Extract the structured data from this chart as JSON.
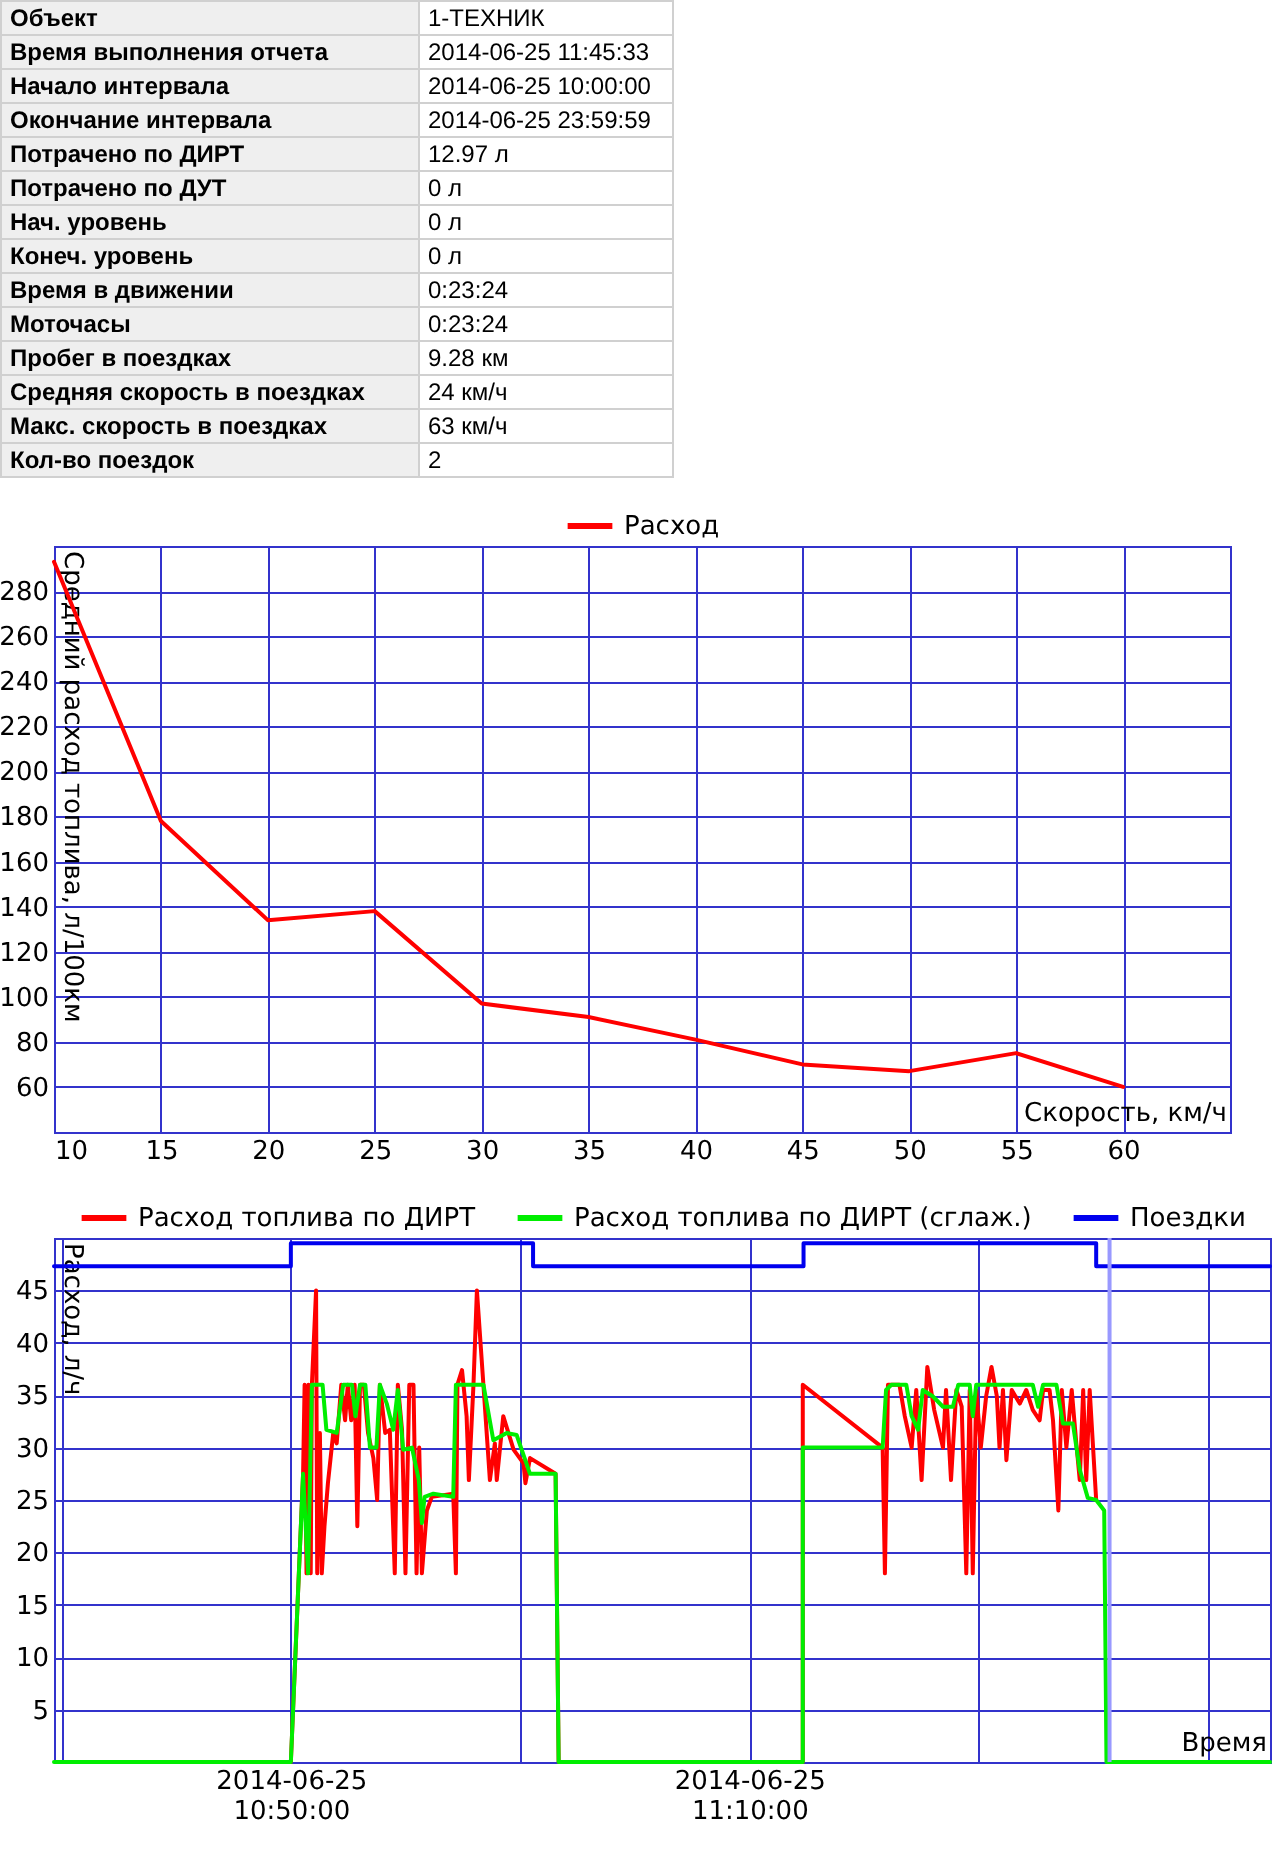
{
  "chart_data": [
    {
      "type": "other",
      "annotations": [
        "Объект",
        "1-ТЕХНИК",
        "Время выполнения отчета",
        "2014-06-25 11:45:33",
        "Начало интервала",
        "2014-06-25 10:00:00",
        "Окончание интервала",
        "2014-06-25 23:59:59",
        "Потрачено по ДИРТ",
        "12.97 л",
        "Потрачено по ДУТ",
        "0 л",
        "Нач. уровень",
        "0 л",
        "Конеч. уровень",
        "0 л",
        "Время в движении",
        "0:23:24",
        "Моточасы",
        "0:23:24",
        "Пробег в поездках",
        "9.28 км",
        "Средняя скорость в поездках",
        "24 км/ч",
        "Макс. скорость в поездках",
        "63 км/ч",
        "Кол-во поездок",
        "2"
      ]
    },
    {
      "type": "line",
      "xlabel": "Скорость, км/ч",
      "ylabel": "Средний расход топлива, л/100км",
      "x": [
        10,
        15,
        20,
        25,
        30,
        35,
        40,
        45,
        50,
        55,
        60
      ],
      "series": [
        {
          "name": "Расход",
          "color": "#ff0000",
          "values": [
            293,
            178,
            134,
            138,
            97,
            91,
            81,
            70,
            67,
            75,
            60
          ]
        }
      ],
      "xlim": [
        10,
        65
      ],
      "xticks": [
        10,
        15,
        20,
        25,
        30,
        35,
        40,
        45,
        50,
        55,
        60
      ],
      "ylim": [
        40,
        300
      ],
      "yticks": [
        60,
        80,
        100,
        120,
        140,
        160,
        180,
        200,
        220,
        240,
        260,
        280
      ],
      "grid": true,
      "legend": "top"
    },
    {
      "type": "line",
      "xlabel": "Время",
      "ylabel": "Расход, л/ч",
      "series": [
        {
          "name": "Расход топлива по ДИРТ",
          "color": "#ff0000",
          "x": [
            "2014-06-25T10:50:00",
            "2014-06-25T10:50:32",
            "2014-06-25T10:50:36",
            "2014-06-25T10:50:41",
            "2014-06-25T10:50:46",
            "2014-06-25T10:50:52",
            "2014-06-25T10:50:55",
            "2014-06-25T10:51:06",
            "2014-06-25T10:51:09",
            "2014-06-25T10:51:16",
            "2014-06-25T10:51:21",
            "2014-06-25T10:51:28",
            "2014-06-25T10:51:37",
            "2014-06-25T10:51:51",
            "2014-06-25T10:52:00",
            "2014-06-25T10:52:12",
            "2014-06-25T10:52:22",
            "2014-06-25T10:52:29",
            "2014-06-25T10:52:38",
            "2014-06-25T10:52:47",
            "2014-06-25T10:52:54",
            "2014-06-25T10:53:01",
            "2014-06-25T10:53:11",
            "2014-06-25T10:53:22",
            "2014-06-25T10:53:36",
            "2014-06-25T10:53:46",
            "2014-06-25T10:53:53",
            "2014-06-25T10:54:07",
            "2014-06-25T10:54:19",
            "2014-06-25T10:54:32",
            "2014-06-25T10:54:40",
            "2014-06-25T10:54:51",
            "2014-06-25T10:55:00",
            "2014-06-25T10:55:10",
            "2014-06-25T10:55:21",
            "2014-06-25T10:55:29",
            "2014-06-25T10:55:36",
            "2014-06-25T10:55:43",
            "2014-06-25T10:55:56",
            "2014-06-25T10:56:09",
            "2014-06-25T10:57:05",
            "2014-06-25T10:57:12",
            "2014-06-25T10:57:16",
            "2014-06-25T10:57:28",
            "2014-06-25T10:57:40",
            "2014-06-25T10:57:46",
            "2014-06-25T10:57:58",
            "2014-06-25T10:58:07",
            "2014-06-25T10:58:24",
            "2014-06-25T10:58:41",
            "2014-06-25T10:58:54",
            "2014-06-25T10:58:59",
            "2014-06-25T10:59:16",
            "2014-06-25T10:59:43",
            "2014-06-25T11:00:09",
            "2014-06-25T11:00:14",
            "2014-06-25T11:00:26",
            "2014-06-25T11:01:33",
            "2014-06-25T11:01:41",
            "2014-06-25T11:12:20",
            "2014-06-25T11:12:20",
            "2014-06-25T11:15:49",
            "2014-06-25T11:15:55",
            "2014-06-25T11:16:03",
            "2014-06-25T11:16:33",
            "2014-06-25T11:16:47",
            "2014-06-25T11:17:05",
            "2014-06-25T11:17:17",
            "2014-06-25T11:17:31",
            "2014-06-25T11:17:46",
            "2014-06-25T11:18:04",
            "2014-06-25T11:18:27",
            "2014-06-25T11:18:35",
            "2014-06-25T11:18:48",
            "2014-06-25T11:19:02",
            "2014-06-25T11:19:16",
            "2014-06-25T11:19:28",
            "2014-06-25T11:19:37",
            "2014-06-25T11:19:45",
            "2014-06-25T11:19:54",
            "2014-06-25T11:20:06",
            "2014-06-25T11:20:20",
            "2014-06-25T11:20:34",
            "2014-06-25T11:20:48",
            "2014-06-25T11:20:55",
            "2014-06-25T11:21:04",
            "2014-06-25T11:21:13",
            "2014-06-25T11:21:27",
            "2014-06-25T11:21:48",
            "2014-06-25T11:22:05",
            "2014-06-25T11:22:22",
            "2014-06-25T11:22:40",
            "2014-06-25T11:22:49",
            "2014-06-25T11:23:06",
            "2014-06-25T11:23:15",
            "2014-06-25T11:23:29",
            "2014-06-25T11:23:38",
            "2014-06-25T11:23:50",
            "2014-06-25T11:24:04",
            "2014-06-25T11:24:16",
            "2014-06-25T11:24:25",
            "2014-06-25T11:24:34",
            "2014-06-25T11:24:42",
            "2014-06-25T11:24:51",
            "2014-06-25T11:25:08"
          ],
          "values": [
            0,
            27.5,
            36,
            18,
            36,
            18,
            36,
            45,
            18,
            31.4,
            18,
            22.5,
            26.6,
            31.4,
            30.4,
            36,
            32.6,
            36,
            32.6,
            36,
            22.5,
            36,
            36,
            31.4,
            29,
            25,
            36,
            31.4,
            31.7,
            18,
            36,
            31.7,
            18,
            36,
            36,
            18,
            30,
            18,
            24,
            25.3,
            25.6,
            18,
            36,
            37.4,
            33,
            26.9,
            36,
            45,
            36,
            26.9,
            30.4,
            26.9,
            33,
            29.8,
            28.5,
            26.6,
            29,
            27.5,
            0,
            0,
            36,
            30,
            18,
            36,
            36,
            33,
            30,
            35.5,
            26.9,
            37.7,
            33.6,
            30,
            35.5,
            26.9,
            35.5,
            33.9,
            18,
            35.5,
            18,
            35.5,
            30,
            34.9,
            37.7,
            34.9,
            30,
            35.5,
            28.8,
            35.5,
            34.2,
            35.5,
            33.6,
            32.6,
            35.5,
            35.5,
            32.6,
            24,
            35.5,
            30,
            35.5,
            30.4,
            26.9,
            35.5,
            26.9,
            35.5,
            25
          ]
        },
        {
          "name": "Расход топлива по ДИРТ (сглаж.)",
          "color": "#00ee00",
          "x": [
            "2014-06-25T10:39:40",
            "2014-06-25T10:50:00",
            "2014-06-25T10:50:32",
            "2014-06-25T10:50:45",
            "2014-06-25T10:50:55",
            "2014-06-25T10:51:23",
            "2014-06-25T10:51:33",
            "2014-06-25T10:52:00",
            "2014-06-25T10:52:17",
            "2014-06-25T10:52:40",
            "2014-06-25T10:52:49",
            "2014-06-25T10:53:01",
            "2014-06-25T10:53:15",
            "2014-06-25T10:53:27",
            "2014-06-25T10:53:44",
            "2014-06-25T10:53:53",
            "2014-06-25T10:54:11",
            "2014-06-25T10:54:28",
            "2014-06-25T10:54:40",
            "2014-06-25T10:54:54",
            "2014-06-25T10:55:17",
            "2014-06-25T10:55:35",
            "2014-06-25T10:55:43",
            "2014-06-25T10:55:50",
            "2014-06-25T10:56:13",
            "2014-06-25T10:57:05",
            "2014-06-25T10:57:12",
            "2014-06-25T10:58:24",
            "2014-06-25T10:58:50",
            "2014-06-25T10:59:25",
            "2014-06-25T10:59:51",
            "2014-06-25T11:00:26",
            "2014-06-25T11:01:33",
            "2014-06-25T11:01:41",
            "2014-06-25T11:12:20",
            "2014-06-25T11:12:20",
            "2014-06-25T11:15:49",
            "2014-06-25T11:15:58",
            "2014-06-25T11:16:12",
            "2014-06-25T11:16:51",
            "2014-06-25T11:17:05",
            "2014-06-25T11:17:22",
            "2014-06-25T11:17:34",
            "2014-06-25T11:18:00",
            "2014-06-25T11:18:27",
            "2014-06-25T11:18:53",
            "2014-06-25T11:19:07",
            "2014-06-25T11:19:37",
            "2014-06-25T11:19:45",
            "2014-06-25T11:19:54",
            "2014-06-25T11:22:22",
            "2014-06-25T11:22:36",
            "2014-06-25T11:22:49",
            "2014-06-25T11:23:24",
            "2014-06-25T11:23:41",
            "2014-06-25T11:24:07",
            "2014-06-25T11:24:25",
            "2014-06-25T11:24:46",
            "2014-06-25T11:25:08",
            "2014-06-25T11:25:29",
            "2014-06-25T11:25:35",
            "2014-06-25T11:32:43"
          ],
          "values": [
            0,
            0,
            27.5,
            18,
            36,
            36,
            31.7,
            31.4,
            36,
            36,
            33,
            36,
            36,
            30,
            30,
            36,
            34.2,
            31.7,
            35.5,
            29.8,
            30,
            26.9,
            22.8,
            25.3,
            25.6,
            25.3,
            36,
            36,
            30.7,
            31.4,
            31.2,
            27.5,
            27.5,
            0,
            0,
            30,
            30,
            35.5,
            36,
            36,
            33,
            31.7,
            35.5,
            34.9,
            33.9,
            33.9,
            36,
            36,
            33,
            36,
            36,
            33.9,
            36,
            36,
            32.3,
            32.3,
            27.9,
            25.2,
            25,
            24,
            0,
            0
          ]
        },
        {
          "name": "Поездки",
          "color": "#0000ee",
          "x": [
            "2014-06-25T10:39:40",
            "2014-06-25T10:50:00",
            "2014-06-25T10:50:00",
            "2014-06-25T11:00:34",
            "2014-06-25T11:00:34",
            "2014-06-25T11:12:22",
            "2014-06-25T11:12:22",
            "2014-06-25T11:25:08",
            "2014-06-25T11:25:08",
            "2014-06-25T11:32:43"
          ],
          "values": [
            47.3,
            47.3,
            49.5,
            49.5,
            47.3,
            47.3,
            49.5,
            49.5,
            47.3,
            47.3
          ]
        }
      ],
      "xlim": [
        "2014-06-25T10:39:40",
        "2014-06-25T11:32:43"
      ],
      "xticks": [
        {
          "value": "2014-06-25T10:40",
          "label": null
        },
        {
          "value": "2014-06-25T10:50",
          "label": "2014-06-25\n10:50:00"
        },
        {
          "value": "2014-06-25T11:00",
          "label": null
        },
        {
          "value": "2014-06-25T11:10",
          "label": "2014-06-25\n11:10:00"
        },
        {
          "value": "2014-06-25T11:20",
          "label": null
        },
        {
          "value": "2014-06-25T11:30",
          "label": null
        }
      ],
      "ylim": [
        0,
        50
      ],
      "yticks": [
        5,
        10,
        15,
        20,
        25,
        30,
        35,
        40,
        45
      ],
      "ref_lines": [
        {
          "axis": "x",
          "value": "2014-06-25T11:25:43",
          "color": "#9999ff"
        }
      ],
      "grid": true,
      "legend": "top"
    }
  ]
}
